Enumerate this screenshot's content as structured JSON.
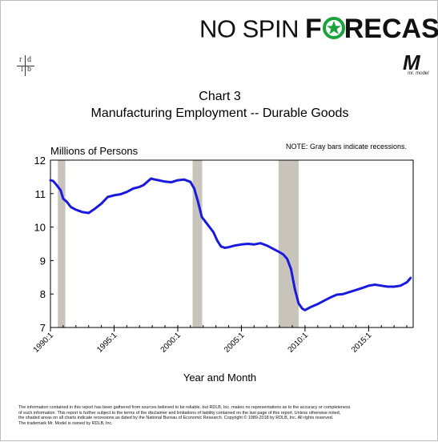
{
  "brand": {
    "part1": "NO SPIN",
    "part2": "F",
    "part3": "RECAST",
    "accent_color": "#19a33a",
    "icon": "star-icon"
  },
  "rdlb_logo": {
    "r": "r",
    "d": "d",
    "l": "l",
    "b": "b"
  },
  "mr_model_logo": {
    "letter": "M",
    "tagline": "mr. model"
  },
  "chart_data": {
    "type": "line",
    "title": "Chart 3",
    "subtitle": "Manufacturing Employment -- Durable Goods",
    "ylabel": "Millions of Persons",
    "xlabel": "Year and Month",
    "note": "NOTE: Gray bars indicate recessions.",
    "ylim": [
      7,
      12
    ],
    "yticks": [
      "7",
      "8",
      "9",
      "10",
      "11",
      "12"
    ],
    "xlim": [
      1990.0,
      2018.5
    ],
    "xticks": [
      {
        "x": 1990.0,
        "label": "1990:1"
      },
      {
        "x": 1995.0,
        "label": "1995:1"
      },
      {
        "x": 2000.0,
        "label": "2000:1"
      },
      {
        "x": 2005.0,
        "label": "2005:1"
      },
      {
        "x": 2010.0,
        "label": "2010:1"
      },
      {
        "x": 2015.0,
        "label": "2015:1"
      }
    ],
    "recessions": [
      [
        1990.58,
        1991.17
      ],
      [
        2001.17,
        2001.92
      ],
      [
        2007.92,
        2009.5
      ]
    ],
    "grid": false,
    "line_color": "#1a1adf",
    "recession_color": "#c8c4bc",
    "series": [
      {
        "x": [
          1990.0,
          1990.2,
          1990.5,
          1990.8,
          1991.0,
          1991.3,
          1991.6,
          1992.0,
          1992.5,
          1993.0,
          1993.5,
          1994.0,
          1994.5,
          1995.0,
          1995.5,
          1996.0,
          1996.5,
          1997.0,
          1997.3,
          1997.6,
          1997.9,
          1998.2,
          1998.5,
          1999.0,
          1999.5,
          2000.0,
          2000.5,
          2001.0,
          2001.3,
          2001.6,
          2001.9,
          2002.2,
          2002.5,
          2002.8,
          2003.1,
          2003.4,
          2003.7,
          2004.0,
          2004.5,
          2005.0,
          2005.5,
          2006.0,
          2006.5,
          2007.0,
          2007.5,
          2008.0,
          2008.3,
          2008.6,
          2008.9,
          2009.2,
          2009.5,
          2009.8,
          2010.0,
          2010.5,
          2011.0,
          2011.5,
          2012.0,
          2012.5,
          2013.0,
          2013.5,
          2014.0,
          2014.5,
          2015.0,
          2015.5,
          2016.0,
          2016.5,
          2017.0,
          2017.5,
          2018.0,
          2018.3
        ],
        "y": [
          11.4,
          11.38,
          11.25,
          11.1,
          10.85,
          10.75,
          10.6,
          10.52,
          10.45,
          10.42,
          10.55,
          10.7,
          10.9,
          10.95,
          10.98,
          11.05,
          11.15,
          11.2,
          11.25,
          11.35,
          11.45,
          11.42,
          11.4,
          11.36,
          11.34,
          11.4,
          11.42,
          11.35,
          11.15,
          10.75,
          10.3,
          10.15,
          10.0,
          9.85,
          9.6,
          9.42,
          9.38,
          9.4,
          9.45,
          9.48,
          9.5,
          9.48,
          9.52,
          9.45,
          9.35,
          9.25,
          9.18,
          9.05,
          8.75,
          8.15,
          7.72,
          7.56,
          7.52,
          7.62,
          7.7,
          7.8,
          7.9,
          7.98,
          8.0,
          8.06,
          8.12,
          8.18,
          8.25,
          8.28,
          8.25,
          8.22,
          8.22,
          8.25,
          8.35,
          8.48
        ]
      }
    ]
  },
  "disclaimer": {
    "line1": "The information contained in this report has been gathered from sources believed to be reliable, but RDLB, Inc. makes no representations as to the accuracy or completeness",
    "line2": "of such information. This report is further subject to the terms of the disclaimer and limitations of liability contained on the last page of this report. Unless otherwise noted,",
    "line3": "the shaded areas on all charts indicate recessions as dated by the National Bureau of Economic Research. Copyright © 1989-2018 by RDLB, Inc. All rights reserved.",
    "line4": "The trademark Mr. Model is owned by RDLB, Inc."
  }
}
